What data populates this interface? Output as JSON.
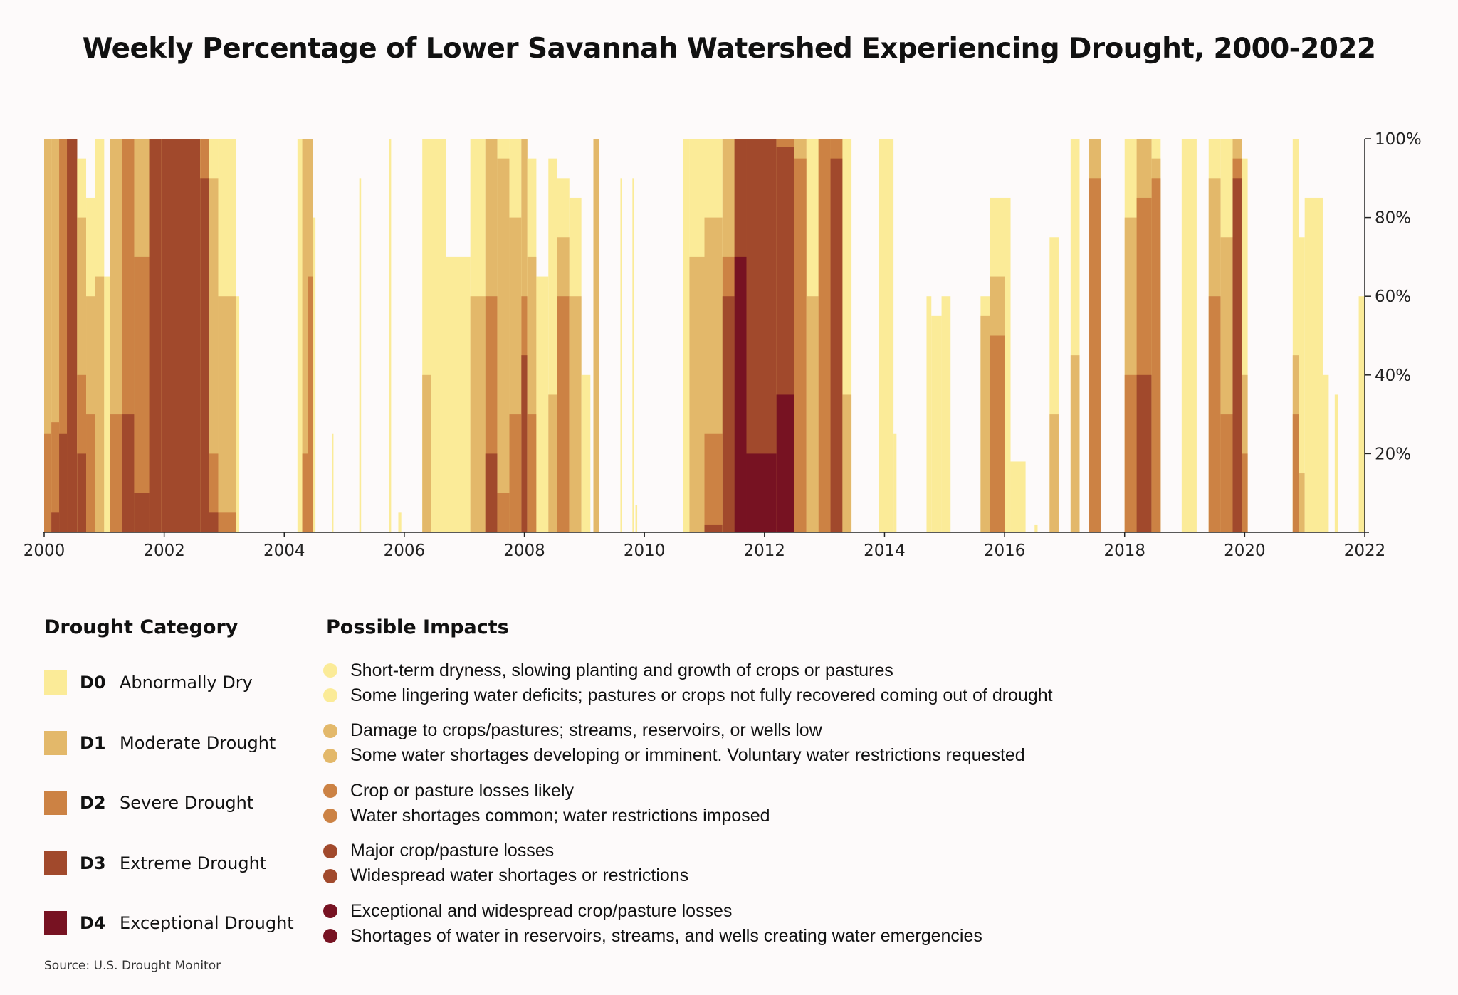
{
  "title": "Weekly Percentage of Lower Savannah Watershed Experiencing Drought, 2000-2022",
  "source": "Source: U.S. Drought Monitor",
  "chart_data": {
    "type": "area",
    "description_of_encoding": "cumulative percent of area at or above each category, yearly-fraction x",
    "xlim": [
      2000,
      2022
    ],
    "ylim": [
      0,
      100
    ],
    "x_ticks": [
      "2000",
      "2002",
      "2004",
      "2006",
      "2008",
      "2010",
      "2012",
      "2014",
      "2016",
      "2018",
      "2020",
      "2022"
    ],
    "y_ticks": [
      "20%",
      "40%",
      "60%",
      "80%",
      "100%"
    ],
    "y_tick_values": [
      20,
      40,
      60,
      80,
      100
    ],
    "series_order": [
      "D0",
      "D1",
      "D2",
      "D3",
      "D4"
    ],
    "segments": [
      [
        2000.0,
        2000.12,
        100,
        100,
        25,
        0,
        0
      ],
      [
        2000.12,
        2000.25,
        100,
        100,
        28,
        5,
        0
      ],
      [
        2000.25,
        2000.38,
        100,
        100,
        100,
        25,
        0
      ],
      [
        2000.38,
        2000.55,
        100,
        100,
        100,
        100,
        0
      ],
      [
        2000.55,
        2000.7,
        95,
        80,
        40,
        20,
        0
      ],
      [
        2000.7,
        2000.85,
        85,
        60,
        30,
        0,
        0
      ],
      [
        2000.85,
        2001.0,
        100,
        65,
        0,
        0,
        0
      ],
      [
        2001.0,
        2001.1,
        65,
        0,
        0,
        0,
        0
      ],
      [
        2001.1,
        2001.3,
        100,
        100,
        30,
        0,
        0
      ],
      [
        2001.3,
        2001.5,
        100,
        100,
        100,
        30,
        0
      ],
      [
        2001.5,
        2001.75,
        100,
        100,
        70,
        10,
        0
      ],
      [
        2001.75,
        2001.95,
        100,
        100,
        100,
        100,
        0
      ],
      [
        2001.95,
        2002.3,
        100,
        100,
        100,
        100,
        0
      ],
      [
        2002.3,
        2002.6,
        100,
        100,
        100,
        100,
        0
      ],
      [
        2002.6,
        2002.75,
        100,
        100,
        100,
        90,
        0
      ],
      [
        2002.75,
        2002.9,
        100,
        90,
        20,
        5,
        0
      ],
      [
        2002.9,
        2003.2,
        100,
        60,
        5,
        0,
        0
      ],
      [
        2003.2,
        2003.25,
        60,
        0,
        0,
        0,
        0
      ],
      [
        2004.22,
        2004.3,
        100,
        0,
        0,
        0,
        0
      ],
      [
        2004.3,
        2004.4,
        100,
        100,
        20,
        0,
        0
      ],
      [
        2004.4,
        2004.48,
        100,
        100,
        65,
        0,
        0
      ],
      [
        2004.48,
        2004.52,
        80,
        0,
        0,
        0,
        0
      ],
      [
        2004.8,
        2004.82,
        25,
        0,
        0,
        0,
        0
      ],
      [
        2005.25,
        2005.28,
        90,
        0,
        0,
        0,
        0
      ],
      [
        2005.75,
        2005.78,
        100,
        0,
        0,
        0,
        0
      ],
      [
        2005.9,
        2005.95,
        5,
        0,
        0,
        0,
        0
      ],
      [
        2006.3,
        2006.45,
        100,
        40,
        0,
        0,
        0
      ],
      [
        2006.45,
        2006.7,
        100,
        0,
        0,
        0,
        0
      ],
      [
        2006.7,
        2007.1,
        70,
        0,
        0,
        0,
        0
      ],
      [
        2007.1,
        2007.35,
        100,
        60,
        0,
        0,
        0
      ],
      [
        2007.35,
        2007.55,
        100,
        100,
        60,
        20,
        0
      ],
      [
        2007.55,
        2007.75,
        100,
        95,
        10,
        0,
        0
      ],
      [
        2007.75,
        2007.95,
        100,
        80,
        30,
        0,
        0
      ],
      [
        2007.95,
        2008.05,
        100,
        100,
        60,
        45,
        0
      ],
      [
        2008.05,
        2008.2,
        95,
        70,
        30,
        0,
        0
      ],
      [
        2008.2,
        2008.4,
        65,
        0,
        0,
        0,
        0
      ],
      [
        2008.4,
        2008.55,
        95,
        35,
        0,
        0,
        0
      ],
      [
        2008.55,
        2008.75,
        90,
        75,
        60,
        0,
        0
      ],
      [
        2008.75,
        2008.95,
        85,
        60,
        0,
        0,
        0
      ],
      [
        2008.95,
        2009.1,
        40,
        0,
        0,
        0,
        0
      ],
      [
        2009.15,
        2009.25,
        100,
        100,
        0,
        0,
        0
      ],
      [
        2009.6,
        2009.63,
        90,
        0,
        0,
        0,
        0
      ],
      [
        2009.8,
        2009.83,
        90,
        0,
        0,
        0,
        0
      ],
      [
        2009.85,
        2009.88,
        7,
        0,
        0,
        0,
        0
      ],
      [
        2010.65,
        2010.75,
        100,
        0,
        0,
        0,
        0
      ],
      [
        2010.75,
        2011.0,
        100,
        70,
        0,
        0,
        0
      ],
      [
        2011.0,
        2011.3,
        100,
        80,
        25,
        2,
        0
      ],
      [
        2011.3,
        2011.5,
        100,
        100,
        70,
        60,
        0
      ],
      [
        2011.5,
        2011.7,
        100,
        100,
        100,
        100,
        70
      ],
      [
        2011.7,
        2012.2,
        100,
        100,
        100,
        100,
        20
      ],
      [
        2012.2,
        2012.5,
        100,
        100,
        100,
        98,
        35
      ],
      [
        2012.5,
        2012.7,
        100,
        100,
        95,
        0,
        0
      ],
      [
        2012.7,
        2012.9,
        100,
        60,
        0,
        0,
        0
      ],
      [
        2012.9,
        2013.1,
        100,
        100,
        100,
        0,
        0
      ],
      [
        2013.1,
        2013.3,
        100,
        100,
        100,
        95,
        0
      ],
      [
        2013.3,
        2013.45,
        100,
        35,
        0,
        0,
        0
      ],
      [
        2013.9,
        2014.15,
        100,
        0,
        0,
        0,
        0
      ],
      [
        2014.15,
        2014.2,
        25,
        0,
        0,
        0,
        0
      ],
      [
        2014.7,
        2014.78,
        60,
        0,
        0,
        0,
        0
      ],
      [
        2014.78,
        2014.95,
        55,
        0,
        0,
        0,
        0
      ],
      [
        2014.95,
        2015.1,
        60,
        0,
        0,
        0,
        0
      ],
      [
        2015.6,
        2015.75,
        60,
        55,
        0,
        0,
        0
      ],
      [
        2015.75,
        2016.0,
        85,
        65,
        50,
        0,
        0
      ],
      [
        2016.0,
        2016.1,
        85,
        0,
        0,
        0,
        0
      ],
      [
        2016.1,
        2016.35,
        18,
        0,
        0,
        0,
        0
      ],
      [
        2016.5,
        2016.55,
        2,
        0,
        0,
        0,
        0
      ],
      [
        2016.75,
        2016.9,
        75,
        30,
        0,
        0,
        0
      ],
      [
        2017.1,
        2017.25,
        100,
        45,
        0,
        0,
        0
      ],
      [
        2017.4,
        2017.6,
        100,
        100,
        90,
        0,
        0
      ],
      [
        2018.0,
        2018.2,
        100,
        80,
        40,
        0,
        0
      ],
      [
        2018.2,
        2018.45,
        100,
        100,
        85,
        40,
        0
      ],
      [
        2018.45,
        2018.6,
        100,
        95,
        90,
        0,
        0
      ],
      [
        2018.95,
        2019.2,
        100,
        0,
        0,
        0,
        0
      ],
      [
        2019.4,
        2019.6,
        100,
        90,
        60,
        0,
        0
      ],
      [
        2019.6,
        2019.8,
        100,
        75,
        30,
        0,
        0
      ],
      [
        2019.8,
        2019.95,
        100,
        100,
        95,
        90,
        0
      ],
      [
        2019.95,
        2020.05,
        95,
        40,
        20,
        0,
        0
      ],
      [
        2020.8,
        2020.9,
        100,
        45,
        30,
        0,
        0
      ],
      [
        2020.9,
        2021.0,
        75,
        15,
        0,
        0,
        0
      ],
      [
        2021.0,
        2021.3,
        85,
        0,
        0,
        0,
        0
      ],
      [
        2021.3,
        2021.4,
        40,
        0,
        0,
        0,
        0
      ],
      [
        2021.5,
        2021.55,
        35,
        0,
        0,
        0,
        0
      ],
      [
        2021.9,
        2022.0,
        60,
        0,
        0,
        0,
        0
      ]
    ]
  },
  "legend": {
    "categories_heading": "Drought Category",
    "impacts_heading": "Possible Impacts",
    "categories": [
      {
        "code": "D0",
        "name": "Abnormally Dry",
        "color": "#fbeb98"
      },
      {
        "code": "D1",
        "name": "Moderate Drought",
        "color": "#e3b86a"
      },
      {
        "code": "D2",
        "name": "Severe Drought",
        "color": "#cc8244"
      },
      {
        "code": "D3",
        "name": "Extreme Drought",
        "color": "#a1492c"
      },
      {
        "code": "D4",
        "name": "Exceptional Drought",
        "color": "#771222"
      }
    ],
    "impacts": [
      {
        "color": "#fbeb98",
        "lines": [
          "Short-term dryness, slowing planting and growth of crops or pastures",
          "Some lingering water deficits; pastures or crops not fully recovered coming out of drought"
        ]
      },
      {
        "color": "#e3b86a",
        "lines": [
          "Damage to crops/pastures; streams, reservoirs, or wells low",
          "Some water shortages developing or imminent. Voluntary water restrictions requested"
        ]
      },
      {
        "color": "#cc8244",
        "lines": [
          "Crop or pasture losses likely",
          "Water shortages common; water restrictions imposed"
        ]
      },
      {
        "color": "#a1492c",
        "lines": [
          "Major crop/pasture losses",
          "Widespread water shortages or restrictions"
        ]
      },
      {
        "color": "#771222",
        "lines": [
          "Exceptional and widespread crop/pasture losses",
          "Shortages of water in reservoirs, streams, and wells creating water emergencies"
        ]
      }
    ]
  }
}
